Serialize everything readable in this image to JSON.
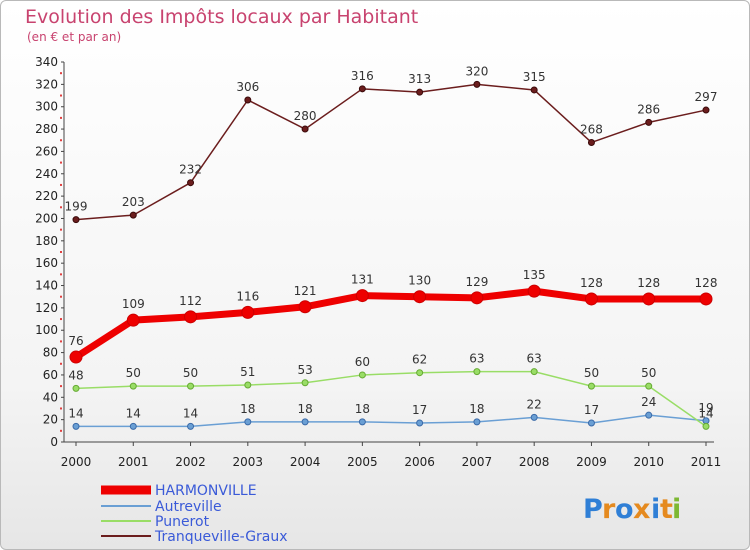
{
  "chart_data": {
    "type": "line",
    "title": "Evolution des Impôts locaux par Habitant",
    "subtitle": "(en € et par an)",
    "categories": [
      "2000",
      "2001",
      "2002",
      "2003",
      "2004",
      "2005",
      "2006",
      "2007",
      "2008",
      "2009",
      "2010",
      "2011"
    ],
    "ylim": [
      0,
      340
    ],
    "yticks": [
      0,
      20,
      40,
      60,
      80,
      100,
      120,
      140,
      160,
      180,
      200,
      220,
      240,
      260,
      280,
      300,
      320,
      340
    ],
    "grid": false,
    "legend_position": "bottom-left",
    "series": [
      {
        "name": "HARMONVILLE",
        "color": "#ee0000",
        "values": [
          76,
          109,
          112,
          116,
          121,
          131,
          130,
          129,
          135,
          128,
          128,
          128
        ],
        "labels": [
          "76",
          "109",
          "112",
          "116",
          "121",
          "131",
          "130",
          "129",
          "135",
          "128",
          "128",
          "128"
        ]
      },
      {
        "name": "Autreville",
        "color": "#6a9fd4",
        "values": [
          14,
          14,
          14,
          18,
          18,
          18,
          17,
          18,
          22,
          17,
          24,
          19
        ],
        "labels": [
          "14",
          "14",
          "14",
          "18",
          "18",
          "18",
          "17",
          "18",
          "22",
          "17",
          "24",
          "19"
        ]
      },
      {
        "name": "Punerot",
        "color": "#99dd66",
        "values": [
          48,
          50,
          50,
          51,
          53,
          60,
          62,
          63,
          63,
          50,
          50,
          14
        ],
        "labels": [
          "48",
          "50",
          "50",
          "51",
          "53",
          "60",
          "62",
          "63",
          "63",
          "50",
          "50",
          "14"
        ]
      },
      {
        "name": "Tranqueville-Graux",
        "color": "#6b1d1d",
        "values": [
          199,
          203,
          232,
          306,
          280,
          316,
          313,
          320,
          315,
          268,
          286,
          297
        ],
        "labels": [
          "199",
          "203",
          "232",
          "306",
          "280",
          "316",
          "313",
          "320",
          "315",
          "268",
          "286",
          "297"
        ]
      }
    ]
  },
  "logo": {
    "text": "Proxiti"
  }
}
